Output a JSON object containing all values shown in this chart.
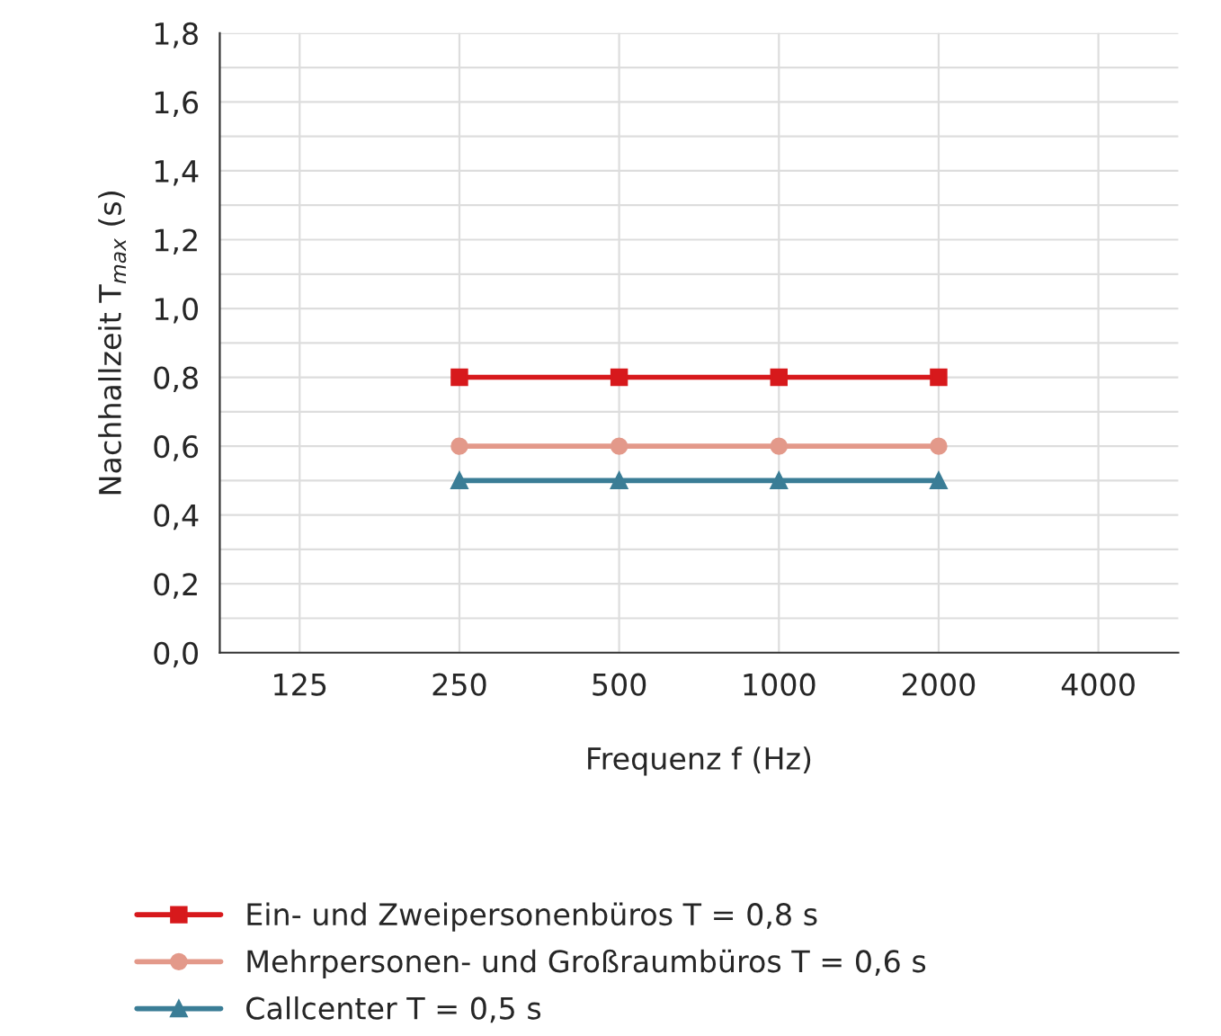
{
  "chart_data": {
    "type": "line",
    "xlabel": "Frequenz f (Hz)",
    "ylabel": "Nachhallzeit T$_{max}$ (s)",
    "categories": [
      "125",
      "250",
      "500",
      "1000",
      "2000",
      "4000"
    ],
    "series": [
      {
        "name": "Ein- und Zweipersonenbüros T = 0,8 s",
        "color": "#d7191c",
        "marker": "square",
        "values": [
          null,
          0.8,
          0.8,
          0.8,
          0.8,
          null
        ]
      },
      {
        "name": "Mehrpersonen- und Großraumbüros T = 0,6 s",
        "color": "#e3998a",
        "marker": "circle",
        "values": [
          null,
          0.6,
          0.6,
          0.6,
          0.6,
          null
        ]
      },
      {
        "name": "Callcenter T = 0,5 s",
        "color": "#3a7d96",
        "marker": "triangle",
        "values": [
          null,
          0.5,
          0.5,
          0.5,
          0.5,
          null
        ]
      }
    ],
    "ylim": [
      0,
      1.8
    ],
    "yticks": [
      {
        "value": 0,
        "label": "0,0"
      },
      {
        "value": 0.1,
        "label": null
      },
      {
        "value": 0.2,
        "label": "0,2"
      },
      {
        "value": 0.3,
        "label": null
      },
      {
        "value": 0.4,
        "label": "0,4"
      },
      {
        "value": 0.5,
        "label": null
      },
      {
        "value": 0.6,
        "label": "0,6"
      },
      {
        "value": 0.7,
        "label": null
      },
      {
        "value": 0.8,
        "label": "0,8"
      },
      {
        "value": 0.9,
        "label": null
      },
      {
        "value": 1.0,
        "label": "1,0"
      },
      {
        "value": 1.1,
        "label": null
      },
      {
        "value": 1.2,
        "label": "1,2"
      },
      {
        "value": 1.3,
        "label": null
      },
      {
        "value": 1.4,
        "label": "1,4"
      },
      {
        "value": 1.5,
        "label": null
      },
      {
        "value": 1.6,
        "label": "1,6"
      },
      {
        "value": 1.7,
        "label": null
      },
      {
        "value": 1.8,
        "label": "1,8"
      }
    ],
    "grid": true,
    "legend": "bottom",
    "line_style": "solid"
  }
}
